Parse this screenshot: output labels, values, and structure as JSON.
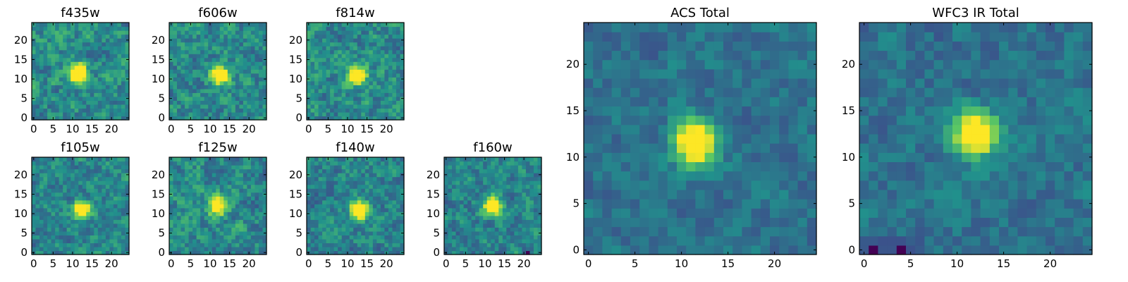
{
  "colormap": {
    "name": "viridis",
    "stops": [
      "#440154",
      "#3b528b",
      "#21918c",
      "#5ec962",
      "#fde725"
    ]
  },
  "chart_data": [
    {
      "type": "heatmap",
      "title": "f435w",
      "image_size": 25,
      "xlim": [
        -0.5,
        24.5
      ],
      "ylim": [
        -0.5,
        24.5
      ],
      "xticks": [
        0,
        5,
        10,
        15,
        20
      ],
      "yticks": [
        0,
        5,
        10,
        15,
        20
      ],
      "peak": {
        "x": 11.5,
        "y": 11.5,
        "value": 1.0
      },
      "noise_level": 0.55,
      "seed": 11
    },
    {
      "type": "heatmap",
      "title": "f606w",
      "image_size": 25,
      "xlim": [
        -0.5,
        24.5
      ],
      "ylim": [
        -0.5,
        24.5
      ],
      "xticks": [
        0,
        5,
        10,
        15,
        20
      ],
      "yticks": [
        0,
        5,
        10,
        15,
        20
      ],
      "peak": {
        "x": 12.5,
        "y": 11.0,
        "value": 0.95
      },
      "noise_level": 0.55,
      "seed": 23
    },
    {
      "type": "heatmap",
      "title": "f814w",
      "image_size": 25,
      "xlim": [
        -0.5,
        24.5
      ],
      "ylim": [
        -0.5,
        24.5
      ],
      "xticks": [
        0,
        5,
        10,
        15,
        20
      ],
      "yticks": [
        0,
        5,
        10,
        15,
        20
      ],
      "peak": {
        "x": 12.5,
        "y": 11.0,
        "value": 1.0
      },
      "noise_level": 0.55,
      "seed": 37
    },
    {
      "type": "heatmap",
      "title": "f105w",
      "image_size": 25,
      "xlim": [
        -0.5,
        24.5
      ],
      "ylim": [
        -0.5,
        24.5
      ],
      "xticks": [
        0,
        5,
        10,
        15,
        20
      ],
      "yticks": [
        0,
        5,
        10,
        15,
        20
      ],
      "peak": {
        "x": 12.5,
        "y": 11.0,
        "value": 0.85
      },
      "noise_level": 0.5,
      "seed": 41
    },
    {
      "type": "heatmap",
      "title": "f125w",
      "image_size": 25,
      "xlim": [
        -0.5,
        24.5
      ],
      "ylim": [
        -0.5,
        24.5
      ],
      "xticks": [
        0,
        5,
        10,
        15,
        20
      ],
      "yticks": [
        0,
        5,
        10,
        15,
        20
      ],
      "peak": {
        "x": 12.0,
        "y": 12.0,
        "value": 0.8
      },
      "noise_level": 0.55,
      "seed": 53
    },
    {
      "type": "heatmap",
      "title": "f140w",
      "image_size": 25,
      "xlim": [
        -0.5,
        24.5
      ],
      "ylim": [
        -0.5,
        24.5
      ],
      "xticks": [
        0,
        5,
        10,
        15,
        20
      ],
      "yticks": [
        0,
        5,
        10,
        15,
        20
      ],
      "peak": {
        "x": 13.0,
        "y": 11.0,
        "value": 0.95
      },
      "noise_level": 0.5,
      "seed": 67
    },
    {
      "type": "heatmap",
      "title": "f160w",
      "image_size": 25,
      "xlim": [
        -0.5,
        24.5
      ],
      "ylim": [
        -0.5,
        24.5
      ],
      "xticks": [
        0,
        5,
        10,
        15,
        20
      ],
      "yticks": [
        0,
        5,
        10,
        15,
        20
      ],
      "peak": {
        "x": 12.0,
        "y": 12.0,
        "value": 0.95
      },
      "noise_level": 0.5,
      "seed": 79
    },
    {
      "type": "heatmap",
      "title": "ACS Total",
      "image_size": 25,
      "xlim": [
        -0.5,
        24.5
      ],
      "ylim": [
        -0.5,
        24.5
      ],
      "xticks": [
        0,
        5,
        10,
        15,
        20
      ],
      "yticks": [
        0,
        5,
        10,
        15,
        20
      ],
      "peak": {
        "x": 11.5,
        "y": 11.5,
        "value": 1.0
      },
      "noise_level": 0.35,
      "seed": 89
    },
    {
      "type": "heatmap",
      "title": "WFC3 IR Total",
      "image_size": 25,
      "xlim": [
        -0.5,
        24.5
      ],
      "ylim": [
        -0.5,
        24.5
      ],
      "xticks": [
        0,
        5,
        10,
        15,
        20
      ],
      "yticks": [
        0,
        5,
        10,
        15,
        20
      ],
      "peak": {
        "x": 12.0,
        "y": 12.5,
        "value": 1.0
      },
      "noise_level": 0.35,
      "seed": 97
    }
  ]
}
